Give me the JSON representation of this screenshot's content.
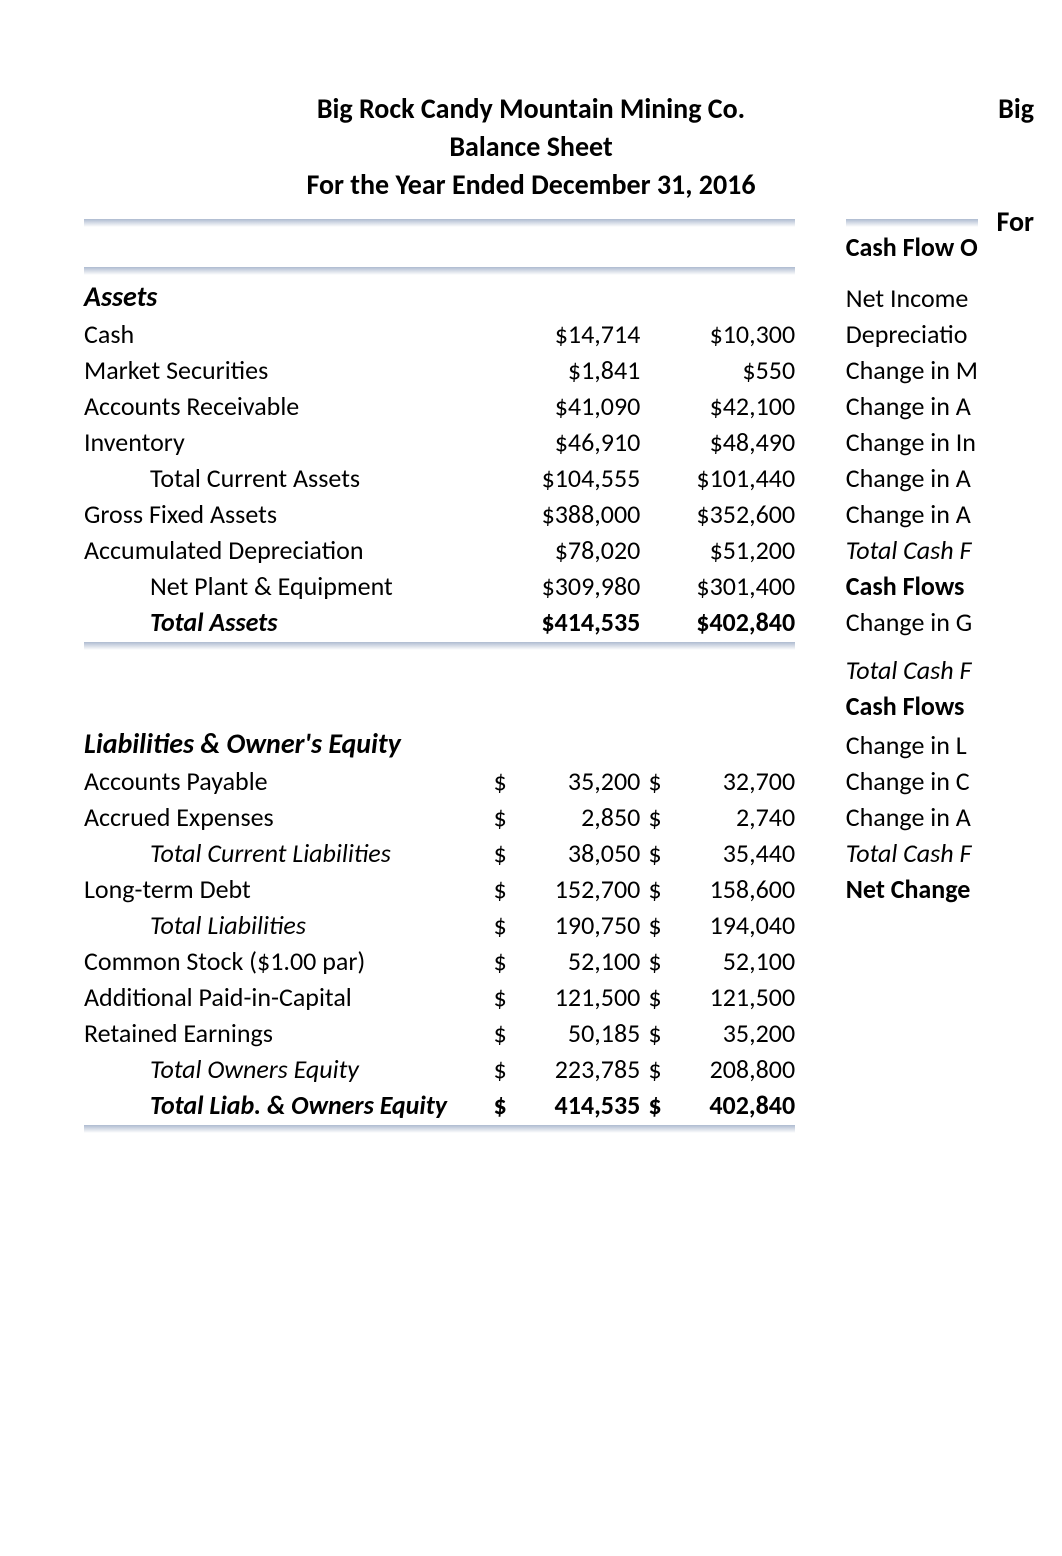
{
  "header": {
    "company": "Big Rock Candy Mountain Mining Co.",
    "title": "Balance Sheet",
    "period": "For the Year Ended December 31, 2016",
    "right_top": "Big",
    "right_bottom": "For"
  },
  "assets": {
    "section": "Assets",
    "rows": [
      {
        "label": "Cash",
        "c1": "$14,714",
        "c2": "$10,300"
      },
      {
        "label": "Market Securities",
        "c1": "$1,841",
        "c2": "$550"
      },
      {
        "label": "Accounts Receivable",
        "c1": "$41,090",
        "c2": "$42,100"
      },
      {
        "label": "Inventory",
        "c1": "$46,910",
        "c2": "$48,490"
      },
      {
        "label": "Total Current Assets",
        "c1": "$104,555",
        "c2": "$101,440",
        "indent": true
      },
      {
        "label": "Gross Fixed Assets",
        "c1": "$388,000",
        "c2": "$352,600"
      },
      {
        "label": "Accumulated Depreciation",
        "c1": "$78,020",
        "c2": "$51,200"
      },
      {
        "label": "Net Plant & Equipment",
        "c1": "$309,980",
        "c2": "$301,400",
        "indent": true
      },
      {
        "label": "Total Assets",
        "c1": "$414,535",
        "c2": "$402,840",
        "indent": true,
        "bolditalic": true,
        "boldvals": true
      }
    ]
  },
  "liab": {
    "section": "Liabilities & Owner's Equity",
    "rows": [
      {
        "label": "Accounts Payable",
        "s1": "$",
        "v1": "35,200",
        "s2": "$",
        "v2": "32,700"
      },
      {
        "label": "Accrued Expenses",
        "s1": "$",
        "v1": "2,850",
        "s2": "$",
        "v2": "2,740"
      },
      {
        "label": "Total Current Liabilities",
        "s1": "$",
        "v1": "38,050",
        "s2": "$",
        "v2": "35,440",
        "indent": true,
        "italic": true
      },
      {
        "label": "Long-term Debt",
        "s1": "$",
        "v1": "152,700",
        "s2": "$",
        "v2": "158,600"
      },
      {
        "label": "Total Liabilities",
        "s1": "$",
        "v1": "190,750",
        "s2": "$",
        "v2": "194,040",
        "indent": true,
        "italic": true
      },
      {
        "label": "Common Stock ($1.00 par)",
        "s1": "$",
        "v1": "52,100",
        "s2": "$",
        "v2": "52,100"
      },
      {
        "label": "Additional Paid-in-Capital",
        "s1": "$",
        "v1": "121,500",
        "s2": "$",
        "v2": "121,500"
      },
      {
        "label": "Retained Earnings",
        "s1": "$",
        "v1": "50,185",
        "s2": "$",
        "v2": "35,200"
      },
      {
        "label": "Total Owners Equity",
        "s1": "$",
        "v1": "223,785",
        "s2": "$",
        "v2": "208,800",
        "indent": true,
        "italic": true
      },
      {
        "label": "Total Liab. & Owners Equity",
        "s1": "$",
        "v1": "414,535",
        "s2": "$",
        "v2": "402,840",
        "indent": true,
        "bolditalic": true,
        "boldvals": true
      }
    ]
  },
  "rightcol": {
    "items": [
      {
        "text": "Cash Flow O",
        "bold": true
      },
      {
        "text": "Net Income"
      },
      {
        "text": "Depreciatio"
      },
      {
        "text": "Change in M"
      },
      {
        "text": "Change in A"
      },
      {
        "text": "Change in In"
      },
      {
        "text": "Change in A"
      },
      {
        "text": "Change in A"
      },
      {
        "text": "Total Cash F",
        "italic": true
      },
      {
        "text": "Cash Flows",
        "bold": true
      },
      {
        "text": "Change in G"
      },
      {
        "text": "Total Cash F",
        "italic": true
      },
      {
        "text": "Cash Flows",
        "bold": true
      },
      {
        "text": "Change in L"
      },
      {
        "text": "Change in C"
      },
      {
        "text": "Change in A"
      },
      {
        "text": "Total Cash F",
        "italic": true
      },
      {
        "text": "Net Change",
        "bold": true
      }
    ]
  },
  "style": {
    "shadow_color": "#a0afc8"
  }
}
